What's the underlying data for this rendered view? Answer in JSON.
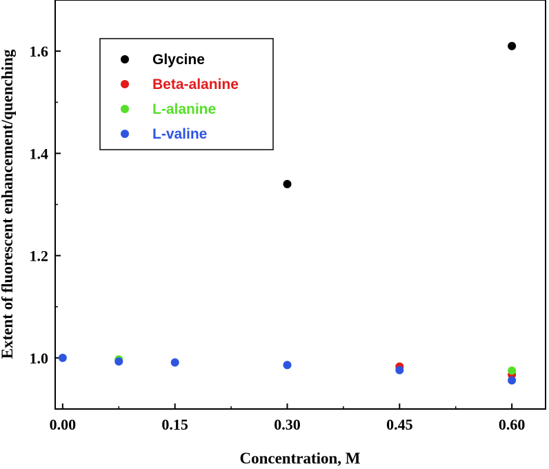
{
  "chart_data": {
    "type": "scatter",
    "title": "",
    "xlabel": "Concentration, M",
    "ylabel": "Extent of fluorescent enhancement/quenching",
    "xlim": [
      -0.01,
      0.645
    ],
    "ylim": [
      0.9,
      1.7
    ],
    "x_ticks": [
      0.0,
      0.15,
      0.3,
      0.45,
      0.6
    ],
    "x_tick_labels": [
      "0.00",
      "0.15",
      "0.30",
      "0.45",
      "0.60"
    ],
    "y_ticks": [
      1.0,
      1.2,
      1.4,
      1.6
    ],
    "y_tick_labels": [
      "1.0",
      "1.2",
      "1.4",
      "1.6"
    ],
    "legend_position": "top-left",
    "series": [
      {
        "name": "Glycine",
        "color": "#000000",
        "x": [
          0.3,
          0.6
        ],
        "y": [
          1.34,
          1.61
        ]
      },
      {
        "name": "Beta-alanine",
        "color": "#e31a1c",
        "x": [
          0.45,
          0.6
        ],
        "y": [
          0.983,
          0.967
        ]
      },
      {
        "name": "L-alanine",
        "color": "#55e027",
        "x": [
          0.075,
          0.6
        ],
        "y": [
          0.997,
          0.975
        ]
      },
      {
        "name": "L-valine",
        "color": "#2f55e0",
        "x": [
          0.0,
          0.075,
          0.15,
          0.3,
          0.45,
          0.6
        ],
        "y": [
          1.0,
          0.993,
          0.991,
          0.986,
          0.976,
          0.956
        ]
      }
    ]
  }
}
